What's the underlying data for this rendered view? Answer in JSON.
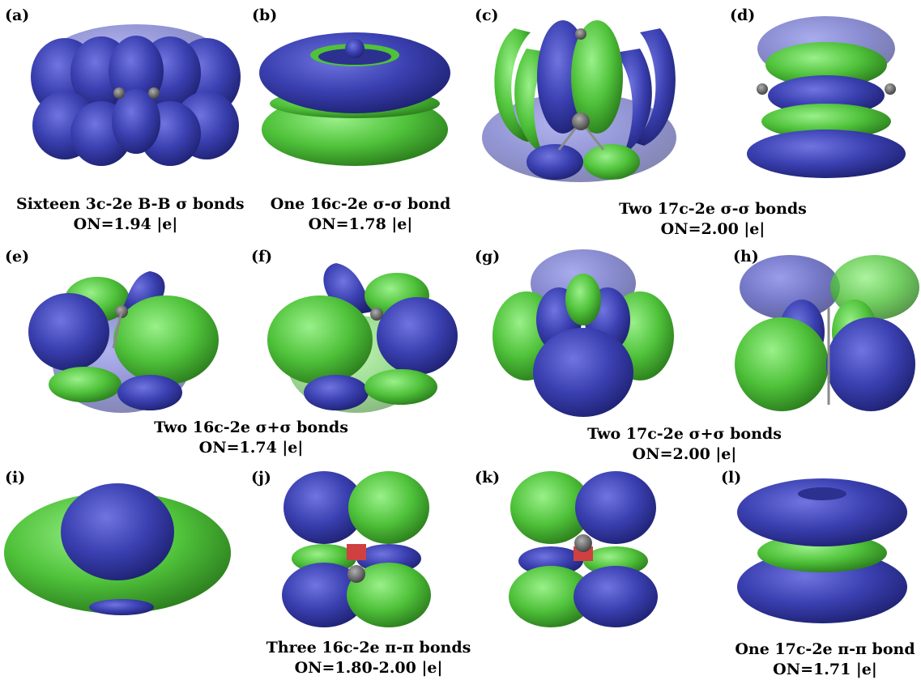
{
  "panels": [
    {
      "id": "a",
      "label": "(a)"
    },
    {
      "id": "b",
      "label": "(b)"
    },
    {
      "id": "c",
      "label": "(c)"
    },
    {
      "id": "d",
      "label": "(d)"
    },
    {
      "id": "e",
      "label": "(e)"
    },
    {
      "id": "f",
      "label": "(f)"
    },
    {
      "id": "g",
      "label": "(g)"
    },
    {
      "id": "h",
      "label": "(h)"
    },
    {
      "id": "i",
      "label": "(i)"
    },
    {
      "id": "j",
      "label": "(j)"
    },
    {
      "id": "k",
      "label": "(k)"
    },
    {
      "id": "l",
      "label": "(l)"
    }
  ],
  "captions": [
    {
      "line1": "Sixteen 3c-2e B-B σ  bonds",
      "line2": "ON=1.94 |e|"
    },
    {
      "line1": "One 16c-2e σ-σ bond",
      "line2": "ON=1.78 |e|"
    },
    {
      "line1": "Two 17c-2e σ-σ bonds",
      "line2": "ON=2.00 |e|"
    },
    {
      "line1": "Two 16c-2e σ+σ bonds",
      "line2": "ON=1.74 |e|"
    },
    {
      "line1": "Two 17c-2e σ+σ bonds",
      "line2": "ON=2.00 |e|"
    },
    {
      "line1": "Three 16c-2e π-π bonds",
      "line2": "ON=1.80-2.00 |e|"
    },
    {
      "line1": "One 17c-2e π-π bond",
      "line2": "ON=1.71 |e|"
    }
  ],
  "colors": {
    "positive_lobe": "#3a3fb0",
    "negative_lobe": "#4fc23a",
    "atom": "#5a5a5a",
    "bond": "#a0a0a0"
  }
}
